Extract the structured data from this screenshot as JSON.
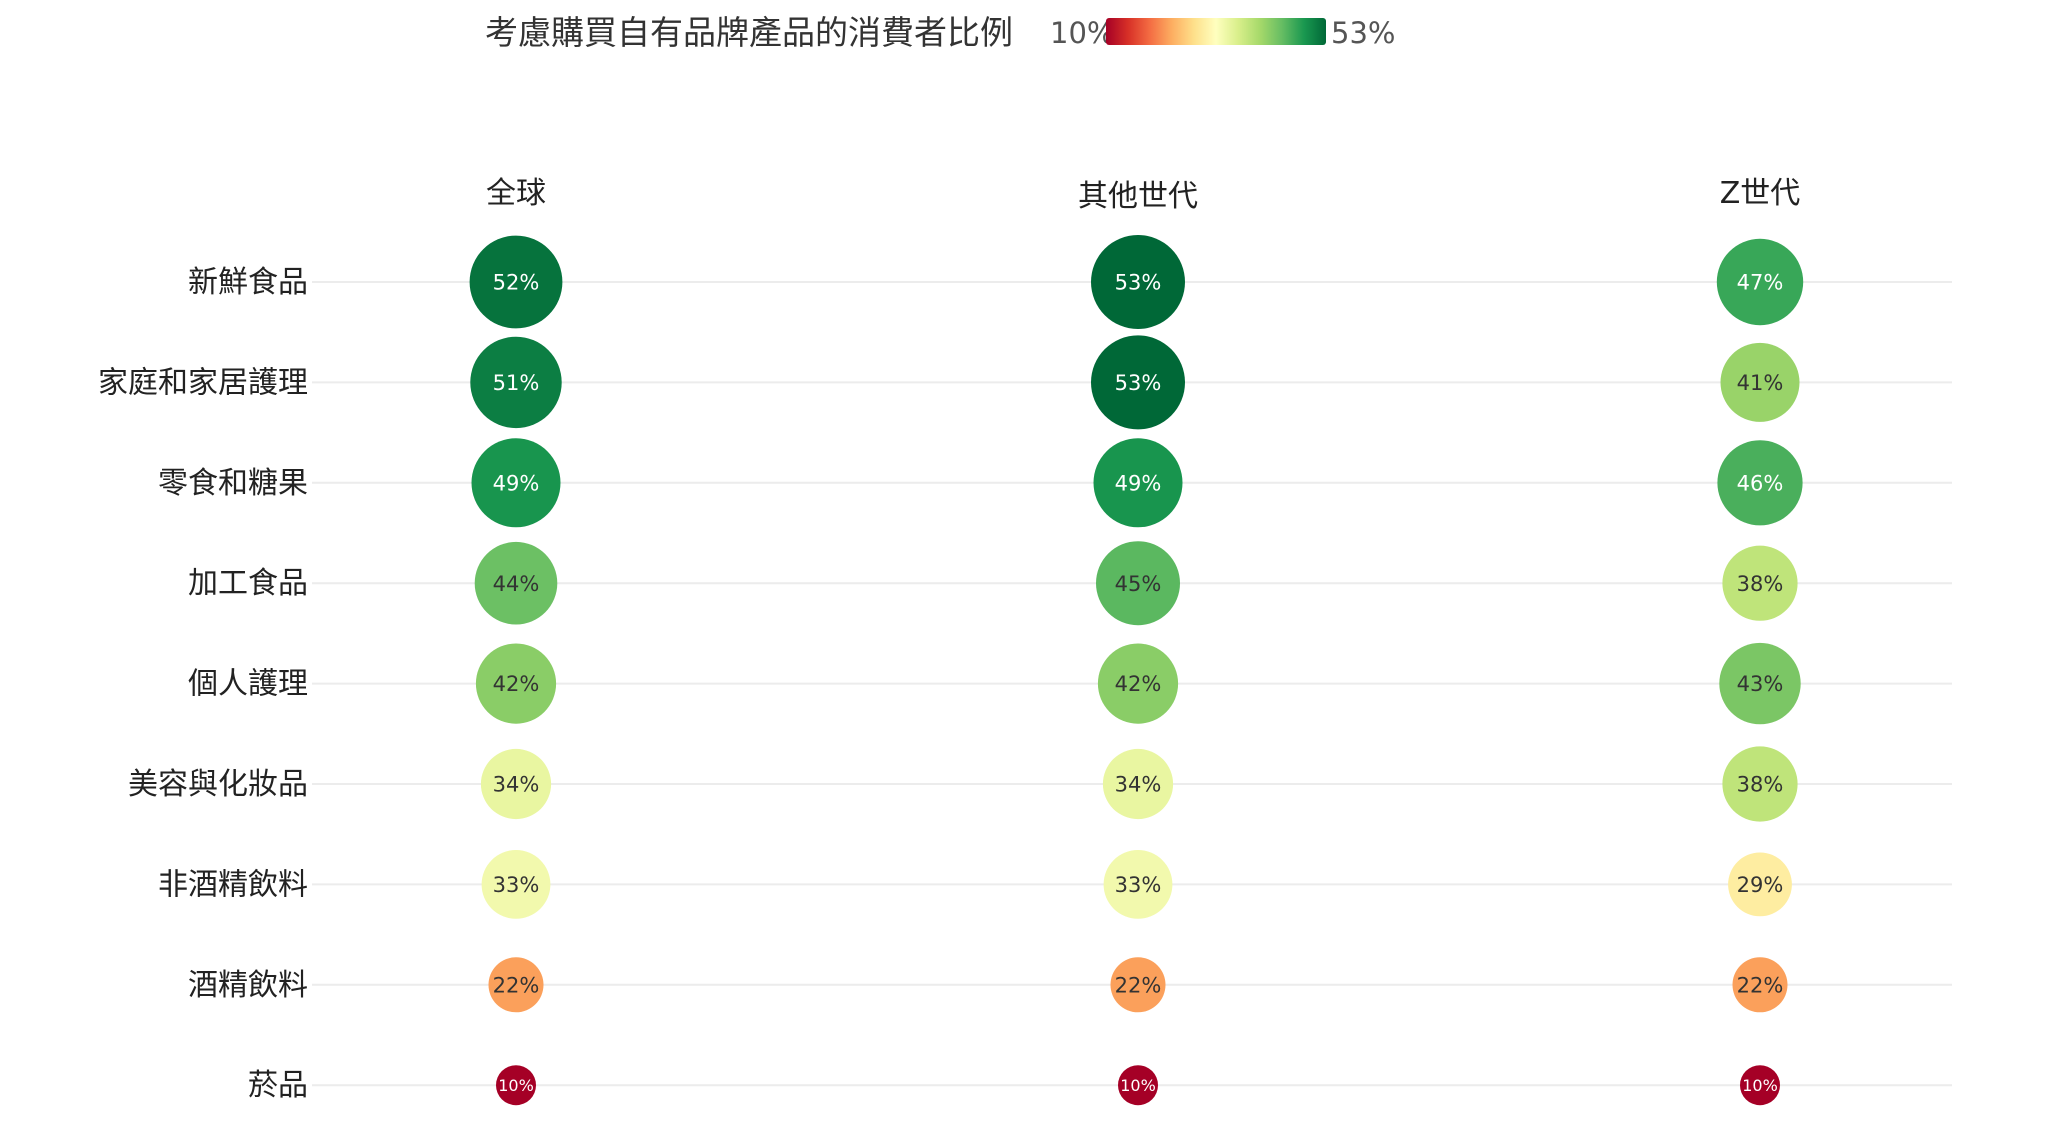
{
  "chart_data": {
    "type": "bubble-matrix",
    "title": "考慮購買自有品牌產品的消費者比例",
    "legend": {
      "min_label": "10%",
      "max_label": "53%",
      "min": 10,
      "max": 53,
      "colors": [
        "#a50026",
        "#d73027",
        "#f46d43",
        "#fdae61",
        "#fee08b",
        "#ffffbf",
        "#d9ef8b",
        "#a6d96a",
        "#66bd63",
        "#1a9850",
        "#006837"
      ]
    },
    "columns": [
      "全球",
      "其他世代",
      "Z世代"
    ],
    "categories": [
      "新鮮食品",
      "家庭和家居護理",
      "零食和糖果",
      "加工食品",
      "個人護理",
      "美容與化妝品",
      "非酒精飲料",
      "酒精飲料",
      "菸品"
    ],
    "series": [
      {
        "name": "全球",
        "values": [
          52,
          51,
          49,
          44,
          42,
          34,
          33,
          22,
          10
        ]
      },
      {
        "name": "其他世代",
        "values": [
          53,
          53,
          49,
          45,
          42,
          34,
          33,
          22,
          10
        ]
      },
      {
        "name": "Z世代",
        "values": [
          47,
          41,
          46,
          38,
          43,
          38,
          29,
          22,
          10
        ]
      }
    ],
    "value_suffix": "%",
    "grid": true
  }
}
